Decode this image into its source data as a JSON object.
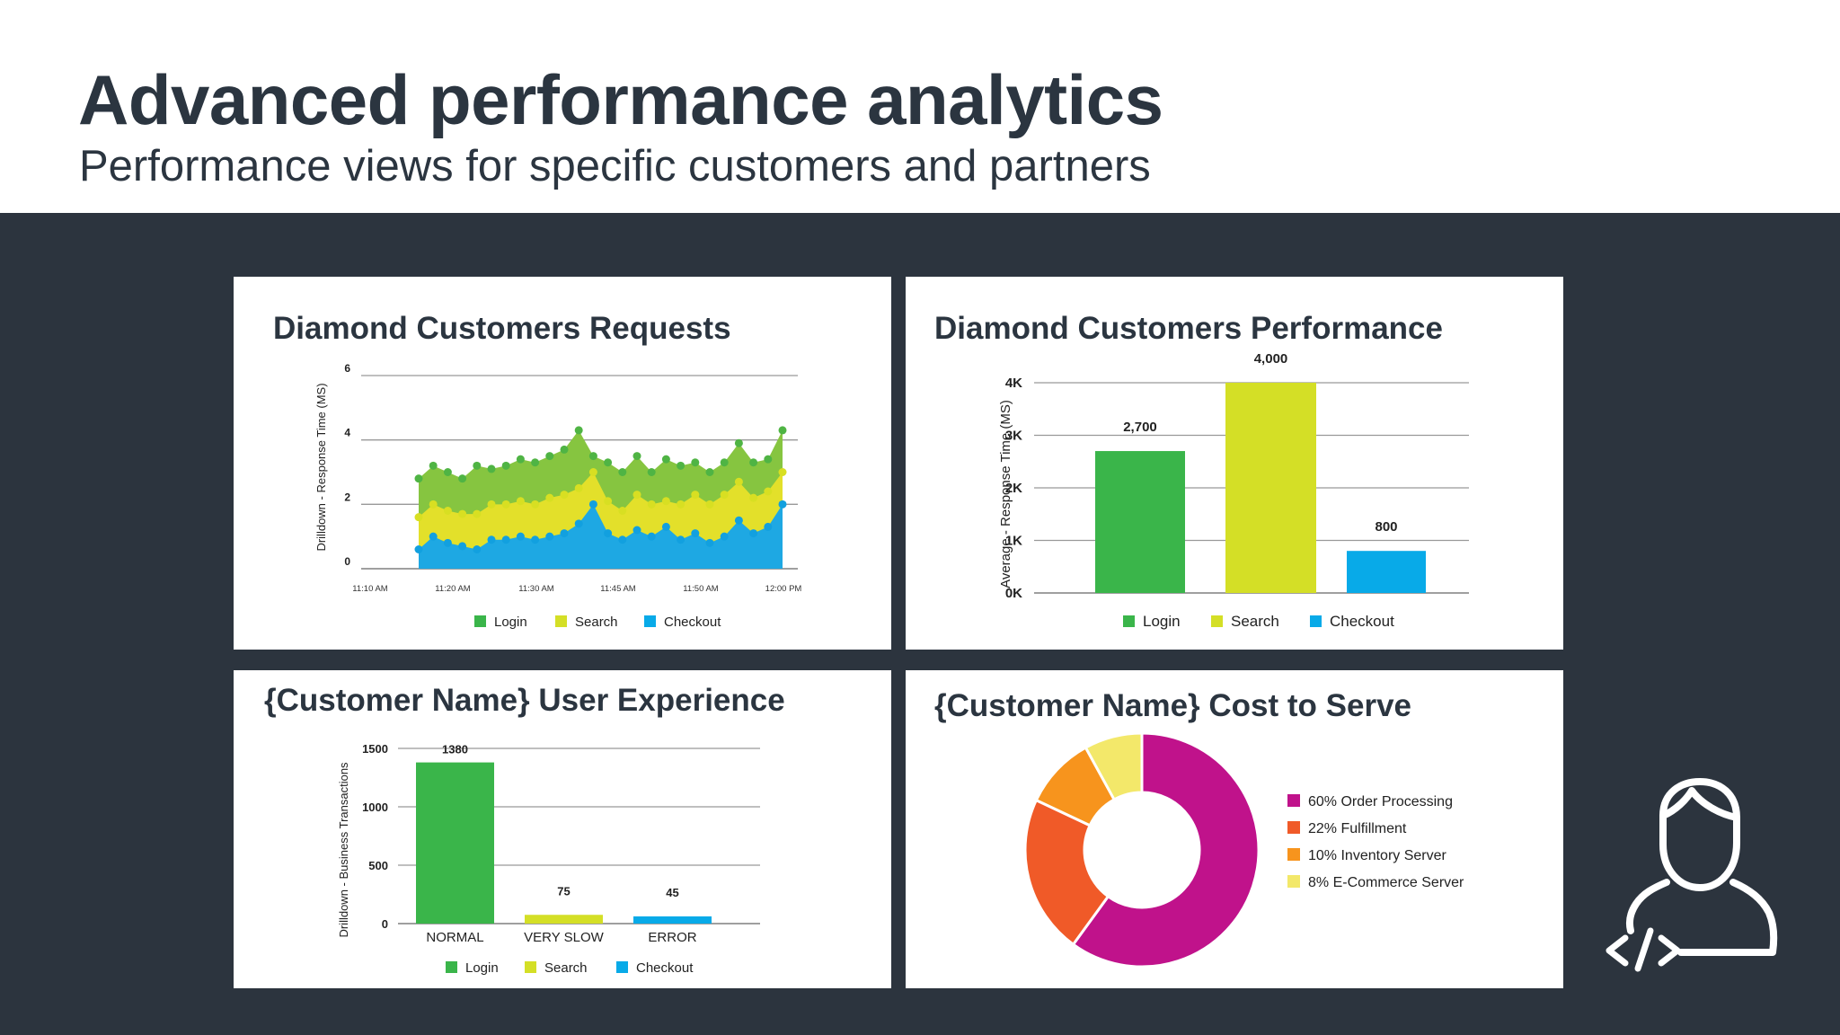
{
  "slide": {
    "title": "Advanced performance analytics",
    "subtitle": "Performance views for specific customers and partners"
  },
  "colors": {
    "login": "#3ab54a",
    "search": "#d4df26",
    "checkout": "#08aae8",
    "background_dark": "#2c343e",
    "text": "#2b3540"
  },
  "icons": [
    "developer-icon"
  ],
  "chart_data": [
    {
      "type": "area",
      "title": "Diamond Customers Requests",
      "ylabel": "Drilldown - Response Time (MS)",
      "ylim": [
        0,
        6
      ],
      "yticks": [
        "0",
        "2",
        "4",
        "6"
      ],
      "xticks": [
        "11:10 AM",
        "11:20 AM",
        "11:30 AM",
        "11:45 AM",
        "11:50 AM",
        "12:00 PM"
      ],
      "legend": [
        "Login",
        "Search",
        "Checkout"
      ],
      "stacked": true,
      "series": [
        {
          "name": "Checkout",
          "color": "#08aae8",
          "values": [
            0.6,
            1.0,
            0.8,
            0.7,
            0.6,
            0.9,
            0.9,
            1.0,
            0.9,
            1.0,
            1.1,
            1.4,
            2.0,
            1.1,
            0.9,
            1.2,
            1.0,
            1.3,
            0.9,
            1.1,
            0.8,
            1.0,
            1.5,
            1.1,
            1.3,
            2.0
          ]
        },
        {
          "name": "Search",
          "color": "#d4df26",
          "values": [
            1.6,
            2.0,
            1.8,
            1.7,
            1.7,
            2.0,
            2.0,
            2.1,
            2.0,
            2.2,
            2.3,
            2.5,
            3.0,
            2.1,
            1.8,
            2.3,
            2.0,
            2.1,
            2.0,
            2.3,
            2.0,
            2.3,
            2.7,
            2.2,
            2.4,
            3.0
          ]
        },
        {
          "name": "Login",
          "color": "#7dc142",
          "values": [
            2.8,
            3.2,
            3.0,
            2.8,
            3.2,
            3.1,
            3.2,
            3.4,
            3.3,
            3.5,
            3.7,
            4.3,
            3.5,
            3.3,
            3.0,
            3.5,
            3.0,
            3.4,
            3.2,
            3.3,
            3.0,
            3.3,
            3.9,
            3.3,
            3.4,
            4.3
          ]
        }
      ]
    },
    {
      "type": "bar",
      "title": "Diamond Customers Performance",
      "ylabel": "Average - Response Time (MS)",
      "ylim": [
        0,
        4000
      ],
      "yticks": [
        "0K",
        "1K",
        "2K",
        "3K",
        "4K"
      ],
      "categories": [
        "Login",
        "Search",
        "Checkout"
      ],
      "values": [
        2700,
        4000,
        800
      ],
      "value_labels": [
        "2,700",
        "4,000",
        "800"
      ],
      "legend": [
        "Login",
        "Search",
        "Checkout"
      ]
    },
    {
      "type": "bar",
      "title": "{Customer Name} User Experience",
      "ylabel": "Drilldown - Business Transactions",
      "ylim": [
        0,
        1500
      ],
      "yticks": [
        "0",
        "500",
        "1000",
        "1500"
      ],
      "categories": [
        "NORMAL",
        "VERY SLOW",
        "ERROR"
      ],
      "values": [
        1380,
        75,
        45
      ],
      "value_labels": [
        "1380",
        "75",
        "45"
      ],
      "legend": [
        "Login",
        "Search",
        "Checkout"
      ]
    },
    {
      "type": "pie",
      "title": "{Customer Name} Cost to Serve",
      "donut": true,
      "slices": [
        {
          "label": "60% Order Processing",
          "value": 60,
          "color": "#c0128b"
        },
        {
          "label": "22% Fulfillment",
          "value": 22,
          "color": "#f05a28"
        },
        {
          "label": "10% Inventory Server",
          "value": 10,
          "color": "#f7941d"
        },
        {
          "label": "8% E-Commerce Server",
          "value": 8,
          "color": "#f3e86a"
        }
      ]
    }
  ]
}
